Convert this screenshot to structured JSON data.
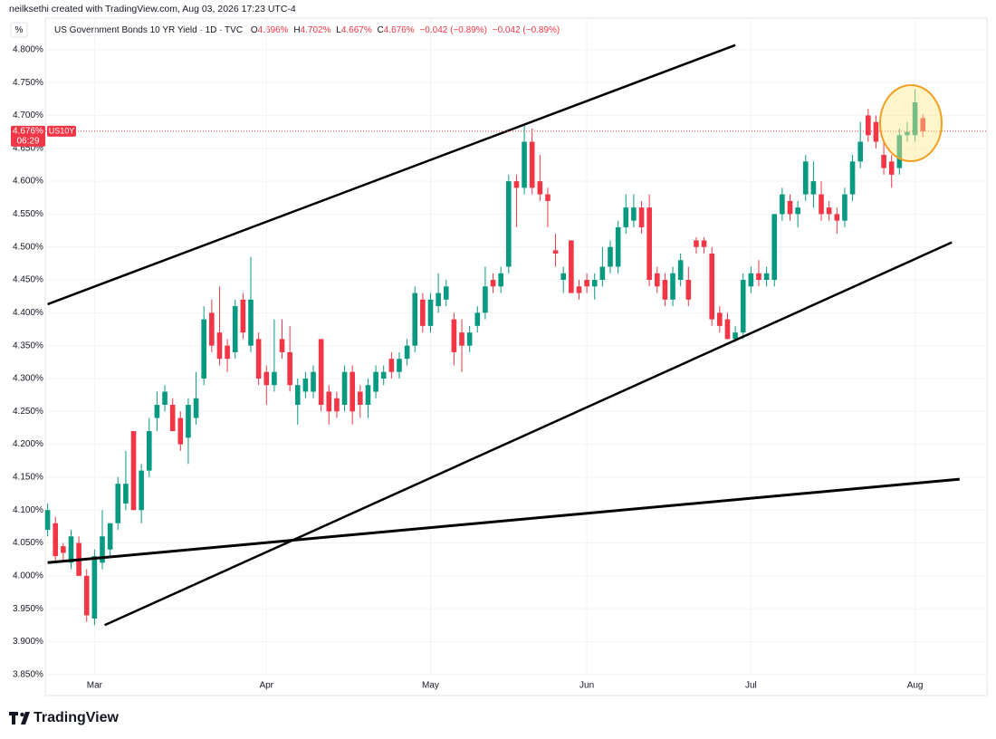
{
  "header": {
    "credit": "neilksethi created with TradingView.com, Aug 03, 2026 17:23 UTC-4",
    "unit_button": "%",
    "symbol": "US Government Bonds 10 YR Yield · 1D · TVC",
    "ohlc": [
      {
        "key": "O",
        "value": "4.696%"
      },
      {
        "key": "H",
        "value": "4.702%"
      },
      {
        "key": "L",
        "value": "4.667%"
      },
      {
        "key": "C",
        "value": "4.676%"
      }
    ],
    "changes": [
      "−0.042 (−0.89%)",
      "−0.042 (−0.89%)"
    ]
  },
  "chart_data": {
    "type": "candlestick",
    "up_color": "#089981",
    "down_color": "#f23645",
    "open": [
      4.07,
      4.08,
      4.045,
      4.02,
      4.05,
      4.0,
      3.935,
      4.02,
      4.04,
      4.08,
      4.11,
      4.22,
      4.1,
      4.16,
      4.24,
      4.26,
      4.26,
      4.24,
      4.21,
      4.24,
      4.3,
      4.4,
      4.37,
      4.35,
      4.34,
      4.42,
      4.35,
      4.36,
      4.31,
      4.29,
      4.36,
      4.34,
      4.26,
      4.28,
      4.28,
      4.36,
      4.28,
      4.27,
      4.26,
      4.31,
      4.28,
      4.26,
      4.28,
      4.3,
      4.33,
      4.31,
      4.33,
      4.35,
      4.42,
      4.38,
      4.41,
      4.42,
      4.39,
      4.37,
      4.35,
      4.38,
      4.4,
      4.45,
      4.44,
      4.47,
      4.6,
      4.59,
      4.66,
      4.6,
      4.58,
      4.495,
      4.45,
      4.51,
      4.44,
      4.45,
      4.44,
      4.45,
      4.47,
      4.47,
      4.53,
      4.54,
      4.56,
      4.56,
      4.46,
      4.45,
      4.42,
      4.45,
      4.45,
      4.51,
      4.51,
      4.49,
      4.4,
      4.39,
      4.36,
      4.37,
      4.44,
      4.46,
      4.45,
      4.45,
      4.55,
      4.57,
      4.55,
      4.58,
      4.58,
      4.58,
      4.56,
      4.55,
      4.54,
      4.58,
      4.63,
      4.7,
      4.69,
      4.64,
      4.63,
      4.62,
      4.67,
      4.67,
      4.696
    ],
    "high": [
      4.11,
      4.09,
      4.05,
      4.07,
      4.06,
      4.01,
      4.04,
      4.1,
      4.08,
      4.15,
      4.19,
      4.22,
      4.17,
      4.24,
      4.28,
      4.29,
      4.27,
      4.25,
      4.27,
      4.31,
      4.41,
      4.42,
      4.44,
      4.36,
      4.42,
      4.43,
      4.485,
      4.37,
      4.32,
      4.39,
      4.39,
      4.38,
      4.3,
      4.31,
      4.32,
      4.36,
      4.29,
      4.28,
      4.32,
      4.32,
      4.29,
      4.3,
      4.32,
      4.32,
      4.34,
      4.34,
      4.36,
      4.44,
      4.43,
      4.43,
      4.46,
      4.45,
      4.4,
      4.39,
      4.38,
      4.41,
      4.47,
      4.46,
      4.47,
      4.61,
      4.61,
      4.686,
      4.68,
      4.64,
      4.59,
      4.52,
      4.47,
      4.51,
      4.45,
      4.46,
      4.46,
      4.5,
      4.51,
      4.54,
      4.58,
      4.58,
      4.57,
      4.58,
      4.47,
      4.46,
      4.47,
      4.49,
      4.47,
      4.515,
      4.515,
      4.5,
      4.41,
      4.4,
      4.38,
      4.46,
      4.47,
      4.48,
      4.47,
      4.55,
      4.59,
      4.58,
      4.57,
      4.64,
      4.63,
      4.6,
      4.57,
      4.56,
      4.59,
      4.64,
      4.69,
      4.71,
      4.7,
      4.66,
      4.64,
      4.68,
      4.69,
      4.74,
      4.702
    ],
    "low": [
      4.06,
      4.02,
      4.02,
      4.01,
      4.0,
      3.93,
      3.925,
      4.01,
      4.03,
      4.07,
      4.1,
      4.1,
      4.08,
      4.15,
      4.22,
      4.25,
      4.22,
      4.19,
      4.17,
      4.23,
      4.29,
      4.34,
      4.32,
      4.31,
      4.33,
      4.36,
      4.34,
      4.29,
      4.26,
      4.28,
      4.33,
      4.28,
      4.23,
      4.27,
      4.27,
      4.25,
      4.23,
      4.24,
      4.25,
      4.23,
      4.24,
      4.24,
      4.27,
      4.29,
      4.3,
      4.3,
      4.32,
      4.34,
      4.37,
      4.37,
      4.4,
      4.41,
      4.32,
      4.31,
      4.34,
      4.37,
      4.39,
      4.43,
      4.43,
      4.46,
      4.53,
      4.58,
      4.58,
      4.57,
      4.53,
      4.47,
      4.43,
      4.43,
      4.42,
      4.43,
      4.42,
      4.44,
      4.46,
      4.46,
      4.52,
      4.53,
      4.52,
      4.44,
      4.43,
      4.41,
      4.41,
      4.44,
      4.41,
      4.49,
      4.49,
      4.38,
      4.37,
      4.36,
      4.36,
      4.36,
      4.43,
      4.44,
      4.44,
      4.44,
      4.54,
      4.54,
      4.53,
      4.57,
      4.56,
      4.54,
      4.54,
      4.52,
      4.53,
      4.57,
      4.62,
      4.66,
      4.65,
      4.61,
      4.59,
      4.61,
      4.66,
      4.66,
      4.667
    ],
    "close": [
      4.1,
      4.03,
      4.035,
      4.06,
      4.0,
      3.94,
      4.03,
      4.06,
      4.08,
      4.14,
      4.14,
      4.1,
      4.16,
      4.22,
      4.26,
      4.28,
      4.22,
      4.2,
      4.26,
      4.27,
      4.39,
      4.35,
      4.33,
      4.33,
      4.41,
      4.37,
      4.42,
      4.3,
      4.29,
      4.31,
      4.34,
      4.29,
      4.29,
      4.3,
      4.31,
      4.26,
      4.25,
      4.25,
      4.31,
      4.25,
      4.26,
      4.29,
      4.31,
      4.31,
      4.31,
      4.33,
      4.35,
      4.43,
      4.38,
      4.42,
      4.43,
      4.44,
      4.34,
      4.35,
      4.37,
      4.4,
      4.44,
      4.44,
      4.46,
      4.6,
      4.59,
      4.66,
      4.59,
      4.58,
      4.57,
      4.49,
      4.46,
      4.43,
      4.43,
      4.44,
      4.45,
      4.47,
      4.5,
      4.53,
      4.56,
      4.56,
      4.53,
      4.45,
      4.44,
      4.42,
      4.46,
      4.48,
      4.42,
      4.5,
      4.5,
      4.39,
      4.38,
      4.36,
      4.37,
      4.45,
      4.46,
      4.45,
      4.46,
      4.55,
      4.58,
      4.55,
      4.56,
      4.63,
      4.6,
      4.55,
      4.55,
      4.54,
      4.58,
      4.63,
      4.66,
      4.67,
      4.66,
      4.62,
      4.61,
      4.67,
      4.675,
      4.72,
      4.676
    ],
    "xlim": [
      -0.3,
      120.2
    ],
    "xticks": [
      {
        "value": 6,
        "label": "Mar"
      },
      {
        "value": 28,
        "label": "Apr"
      },
      {
        "value": 49,
        "label": "May"
      },
      {
        "value": 69,
        "label": "Jun"
      },
      {
        "value": 90,
        "label": "Jul"
      },
      {
        "value": 111,
        "label": "Aug"
      }
    ],
    "ylim": [
      3.818,
      4.848
    ],
    "yticks": [
      {
        "value": 3.85,
        "label": "3.850%"
      },
      {
        "value": 3.9,
        "label": "3.900%"
      },
      {
        "value": 3.95,
        "label": "3.950%"
      },
      {
        "value": 4.0,
        "label": "4.000%"
      },
      {
        "value": 4.05,
        "label": "4.050%"
      },
      {
        "value": 4.1,
        "label": "4.100%"
      },
      {
        "value": 4.15,
        "label": "4.150%"
      },
      {
        "value": 4.2,
        "label": "4.200%"
      },
      {
        "value": 4.25,
        "label": "4.250%"
      },
      {
        "value": 4.3,
        "label": "4.300%"
      },
      {
        "value": 4.35,
        "label": "4.350%"
      },
      {
        "value": 4.4,
        "label": "4.400%"
      },
      {
        "value": 4.45,
        "label": "4.450%"
      },
      {
        "value": 4.5,
        "label": "4.500%"
      },
      {
        "value": 4.55,
        "label": "4.550%"
      },
      {
        "value": 4.6,
        "label": "4.600%"
      },
      {
        "value": 4.65,
        "label": "4.650%"
      },
      {
        "value": 4.7,
        "label": "4.700%"
      },
      {
        "value": 4.75,
        "label": "4.750%"
      },
      {
        "value": 4.8,
        "label": "4.800%"
      }
    ],
    "grid": true,
    "price_tag": {
      "value": 4.676,
      "label": "4.676%",
      "countdown": "06:29",
      "symbol": "US10Y",
      "color": "#f23645"
    },
    "trend_lines": [
      {
        "x": [
          0,
          88
        ],
        "y": [
          4.413,
          4.807
        ]
      },
      {
        "x": [
          7.3,
          115.7
        ],
        "y": [
          3.925,
          4.507
        ]
      },
      {
        "x": [
          0,
          116.7
        ],
        "y": [
          4.02,
          4.147
        ]
      }
    ]
  },
  "footer": {
    "brand": "TradingView"
  }
}
